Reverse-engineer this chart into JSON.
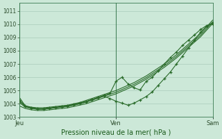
{
  "bg_color": "#cce8d8",
  "grid_color": "#aaccbb",
  "line_color": "#2a6b2a",
  "marker_color": "#2a6b2a",
  "xlabel": "Pression niveau de la mer( hPa )",
  "ylim": [
    1003.0,
    1011.6
  ],
  "yticks": [
    1003,
    1004,
    1005,
    1006,
    1007,
    1008,
    1009,
    1010,
    1011
  ],
  "xtick_labels": [
    "Jeu",
    "Ven",
    "Sam"
  ],
  "xtick_positions": [
    0,
    0.5,
    1.0
  ],
  "n_points": 33,
  "series": [
    [
      1004.5,
      1003.85,
      1003.75,
      1003.7,
      1003.7,
      1003.75,
      1003.8,
      1003.85,
      1003.9,
      1004.0,
      1004.1,
      1004.25,
      1004.4,
      1004.55,
      1004.7,
      1004.85,
      1005.0,
      1005.2,
      1005.4,
      1005.6,
      1005.85,
      1006.1,
      1006.4,
      1006.7,
      1007.0,
      1007.35,
      1007.7,
      1008.1,
      1008.5,
      1008.9,
      1009.3,
      1009.8,
      1010.3
    ],
    [
      1003.85,
      1003.65,
      1003.55,
      1003.5,
      1003.5,
      1003.55,
      1003.6,
      1003.65,
      1003.7,
      1003.8,
      1003.9,
      1004.0,
      1004.15,
      1004.3,
      1004.45,
      1004.6,
      1004.75,
      1004.95,
      1005.15,
      1005.35,
      1005.6,
      1005.85,
      1006.15,
      1006.45,
      1006.75,
      1007.1,
      1007.45,
      1007.85,
      1008.25,
      1008.65,
      1009.05,
      1009.55,
      1010.05
    ],
    [
      1004.1,
      1003.75,
      1003.65,
      1003.6,
      1003.6,
      1003.65,
      1003.7,
      1003.75,
      1003.8,
      1003.9,
      1004.0,
      1004.12,
      1004.27,
      1004.42,
      1004.57,
      1004.72,
      1004.87,
      1005.07,
      1005.27,
      1005.47,
      1005.72,
      1005.97,
      1006.27,
      1006.57,
      1006.87,
      1007.22,
      1007.57,
      1007.97,
      1008.37,
      1008.77,
      1009.17,
      1009.67,
      1010.17
    ],
    [
      1004.3,
      1003.85,
      1003.72,
      1003.65,
      1003.65,
      1003.7,
      1003.75,
      1003.8,
      1003.87,
      1003.97,
      1004.07,
      1004.18,
      1004.33,
      1004.48,
      1004.63,
      1004.78,
      1005.7,
      1006.0,
      1005.5,
      1005.2,
      1005.05,
      1005.7,
      1006.0,
      1006.5,
      1007.0,
      1007.5,
      1007.9,
      1008.4,
      1008.8,
      1009.2,
      1009.6,
      1009.9,
      1010.0
    ],
    [
      1004.2,
      1003.8,
      1003.67,
      1003.6,
      1003.6,
      1003.65,
      1003.7,
      1003.75,
      1003.82,
      1003.92,
      1004.02,
      1004.13,
      1004.28,
      1004.43,
      1004.58,
      1004.4,
      1004.2,
      1004.05,
      1003.9,
      1004.05,
      1004.3,
      1004.55,
      1004.9,
      1005.4,
      1005.9,
      1006.4,
      1007.0,
      1007.6,
      1008.2,
      1008.8,
      1009.4,
      1009.85,
      1010.1
    ]
  ],
  "marker_series": [
    3,
    4
  ],
  "marker_style": "+",
  "marker_size": 3.5,
  "marker_lw": 0.9
}
